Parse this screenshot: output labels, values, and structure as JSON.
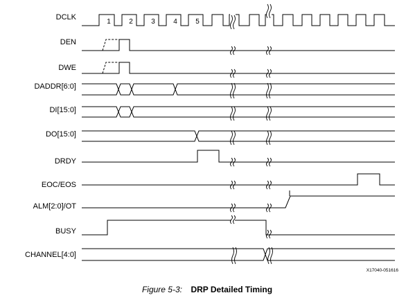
{
  "signals": {
    "dclk": "DCLK",
    "den": "DEN",
    "dwe": "DWE",
    "daddr": "DADDR[6:0]",
    "di": "DI[15:0]",
    "do": "DO[15:0]",
    "drdy": "DRDY",
    "eoc": "EOC/EOS",
    "alm": "ALM[2:0]/OT",
    "busy": "BUSY",
    "channel": "CHANNEL[4:0]"
  },
  "cycle_numbers": [
    "1",
    "2",
    "3",
    "4",
    "5"
  ],
  "figure_id": "X17040-051616",
  "caption": {
    "prefix": "Figure 5-3:",
    "title": "DRP Detailed Timing"
  }
}
